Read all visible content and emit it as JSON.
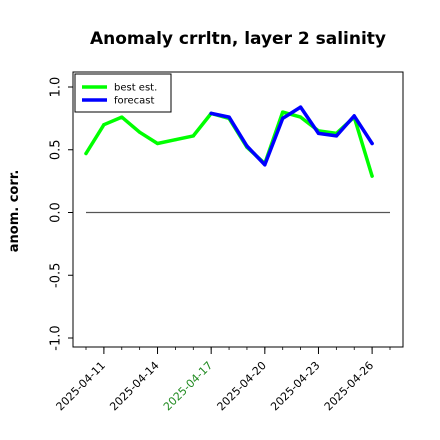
{
  "chart_data": {
    "type": "line",
    "title": "Anomaly crrltn, layer 2 salinity",
    "xlabel": "",
    "ylabel": "anom. corr.",
    "ylim": [
      -1.0,
      1.0
    ],
    "yticks": [
      "-1.0",
      "-0.5",
      "0.0",
      "0.5",
      "1.0"
    ],
    "xlim": [
      "2025-04-10",
      "2025-04-27"
    ],
    "xticks": [
      {
        "label": "2025-04-11",
        "color": "#000000"
      },
      {
        "label": "2025-04-14",
        "color": "#000000"
      },
      {
        "label": "2025-04-17",
        "color": "#228b22"
      },
      {
        "label": "2025-04-20",
        "color": "#000000"
      },
      {
        "label": "2025-04-23",
        "color": "#000000"
      },
      {
        "label": "2025-04-26",
        "color": "#000000"
      }
    ],
    "minor_ticks_every_day": true,
    "reference_line_y": 0.0,
    "grid": false,
    "legend_position": "top-left",
    "series": [
      {
        "name": "best est.",
        "color": "#00ff00",
        "x": [
          "2025-04-10",
          "2025-04-11",
          "2025-04-12",
          "2025-04-13",
          "2025-04-14",
          "2025-04-15",
          "2025-04-16",
          "2025-04-17",
          "2025-04-18",
          "2025-04-19",
          "2025-04-20",
          "2025-04-21",
          "2025-04-22",
          "2025-04-23",
          "2025-04-24",
          "2025-04-25",
          "2025-04-26"
        ],
        "y": [
          0.47,
          0.7,
          0.76,
          0.64,
          0.55,
          0.58,
          0.61,
          0.79,
          0.75,
          0.52,
          0.39,
          0.8,
          0.76,
          0.65,
          0.63,
          0.76,
          0.29
        ]
      },
      {
        "name": "forecast",
        "color": "#0000ff",
        "x": [
          "2025-04-17",
          "2025-04-18",
          "2025-04-19",
          "2025-04-20",
          "2025-04-21",
          "2025-04-22",
          "2025-04-23",
          "2025-04-24",
          "2025-04-25",
          "2025-04-26"
        ],
        "y": [
          0.79,
          0.76,
          0.53,
          0.38,
          0.75,
          0.84,
          0.63,
          0.61,
          0.77,
          0.55
        ]
      }
    ]
  }
}
